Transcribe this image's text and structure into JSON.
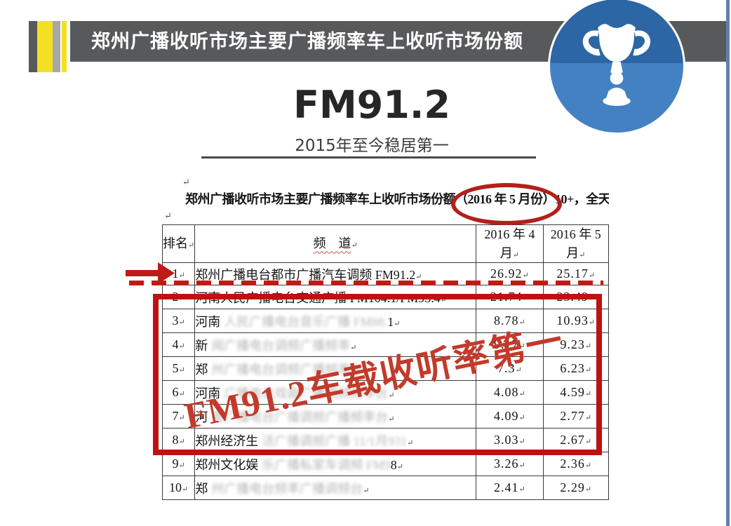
{
  "colors": {
    "bar_gray": "#58595B",
    "accent_yellow": "#F5DF22",
    "badge_blue_dark": "#2C66A4",
    "badge_blue_light": "#4381C3",
    "edge_blue": "#5E81A9",
    "annotation_red": "#BE1B17",
    "stamp_red": "#C33A2B"
  },
  "header": {
    "title": "郑州广播收听市场主要广播频率车上收听市场份额"
  },
  "hero": {
    "title": "FM91.2",
    "subtitle": "2015年至今稳居第一"
  },
  "doc": {
    "para_mark": "↵",
    "title_prefix": "郑州广播收听市场主要广播频率车上收听市场份额",
    "title_circled": "（2016 年 5 月份）",
    "title_suffix": "10+，全天",
    "table": {
      "headers": {
        "rank": "排名",
        "channel": "频　道",
        "apr_line1": "2016 年 4",
        "apr_line2": "月",
        "may_line1": "2016 年 5",
        "may_line2": "月"
      },
      "rows": [
        {
          "rank": "1",
          "channel": [
            {
              "t": "郑州广播电台都市广播汽车调频 FM91.2",
              "blur": false
            }
          ],
          "apr": "26.92",
          "may": "25.17"
        },
        {
          "rank": "2",
          "channel": [
            {
              "t": "河南人民广播电台交通广播 FM104.1/FM93.4",
              "blur": false
            }
          ],
          "apr": "21.74",
          "may": "23.49"
        },
        {
          "rank": "3",
          "channel": [
            {
              "t": "河南",
              "blur": false
            },
            {
              "t": "人民广播电台音乐广播 FM88.",
              "blur": true
            },
            {
              "t": "1",
              "blur": false
            }
          ],
          "apr": "8.78",
          "may": "10.93"
        },
        {
          "rank": "4",
          "channel": [
            {
              "t": "新",
              "blur": false
            },
            {
              "t": "闻广播电台调频广播频率",
              "blur": true
            }
          ],
          "apr": "9.17",
          "may": "9.23"
        },
        {
          "rank": "5",
          "channel": [
            {
              "t": "郑",
              "blur": false
            },
            {
              "t": "州广播电台调频广播频率台",
              "blur": true
            }
          ],
          "apr": "7.3",
          "may": "6.23"
        },
        {
          "rank": "6",
          "channel": [
            {
              "t": "河南",
              "blur": false
            },
            {
              "t": "广播电台戏曲广播调频频率台",
              "blur": true
            }
          ],
          "apr": "4.08",
          "may": "4.59"
        },
        {
          "rank": "7",
          "channel": [
            {
              "t": "河",
              "blur": false
            },
            {
              "t": "南广播电台广播调频广播频率台",
              "blur": true
            }
          ],
          "apr": "4.09",
          "may": "2.77"
        },
        {
          "rank": "8",
          "channel": [
            {
              "t": "郑州经济生",
              "blur": false
            },
            {
              "t": "活广播调频广播 11/1月931",
              "blur": true
            }
          ],
          "apr": "3.03",
          "may": "2.67"
        },
        {
          "rank": "9",
          "channel": [
            {
              "t": "郑州文化娱",
              "blur": false
            },
            {
              "t": "乐广播私家车调频 FM9",
              "blur": true
            },
            {
              "t": "8",
              "blur": false
            }
          ],
          "apr": "3.26",
          "may": "2.36"
        },
        {
          "rank": "10",
          "channel": [
            {
              "t": "郑",
              "blur": false
            },
            {
              "t": "州广播电台频率广播调频台",
              "blur": true
            }
          ],
          "apr": "2.41",
          "may": "2.29"
        }
      ]
    }
  },
  "annotations": {
    "stamp_text": "FM91.2车载收听率第一"
  },
  "icons": {
    "badge": "trophy-icon"
  }
}
